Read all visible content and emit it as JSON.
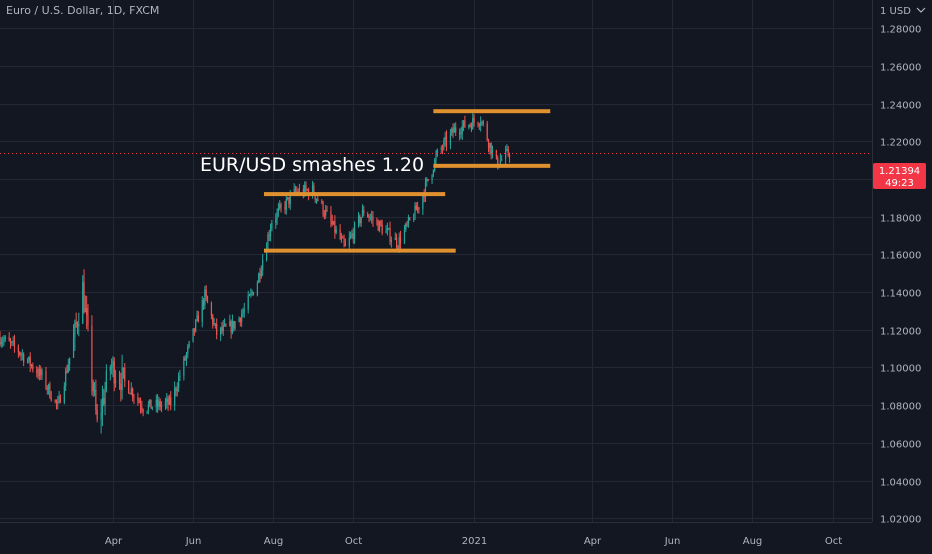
{
  "header": {
    "symbol_title": "Euro / U.S. Dollar, 1D, FXCM",
    "currency_label": "1 USD",
    "currency_icon": "chevron-down-icon"
  },
  "price_tag": {
    "price": "1.21394",
    "countdown": "49:23"
  },
  "annotation_text": "EUR/USD smashes 1.20",
  "colors": {
    "background": "#131722",
    "grid": "#242836",
    "axis_text": "#b2b5be",
    "up": "#26a69a",
    "down": "#ef5350",
    "level_line": "#e0912f",
    "price_tag": "#f23645",
    "annotation": "#ffffff"
  },
  "chart_data": {
    "type": "candlestick",
    "title": "Euro / U.S. Dollar, 1D, FXCM",
    "ylim": [
      1.018,
      1.295
    ],
    "y_ticks": [
      "1.02000",
      "1.04000",
      "1.06000",
      "1.08000",
      "1.10000",
      "1.12000",
      "1.14000",
      "1.16000",
      "1.18000",
      "1.20000",
      "1.22000",
      "1.24000",
      "1.26000",
      "1.28000"
    ],
    "x_ticks": [
      {
        "label": "Apr",
        "date": "2020-04-01"
      },
      {
        "label": "Jun",
        "date": "2020-06-01"
      },
      {
        "label": "Aug",
        "date": "2020-08-01"
      },
      {
        "label": "Oct",
        "date": "2020-10-01"
      },
      {
        "label": "2021",
        "date": "2021-01-01"
      },
      {
        "label": "Apr",
        "date": "2021-04-01"
      },
      {
        "label": "Jun",
        "date": "2021-06-01"
      },
      {
        "label": "Aug",
        "date": "2021-08-01"
      },
      {
        "label": "Oct",
        "date": "2021-10-01"
      }
    ],
    "x_range": [
      "2020-01-06",
      "2021-10-31"
    ],
    "last_price": 1.21394,
    "price_anchors": [
      {
        "date": "2020-01-06",
        "close": 1.116
      },
      {
        "date": "2020-01-20",
        "close": 1.109
      },
      {
        "date": "2020-02-07",
        "close": 1.095
      },
      {
        "date": "2020-02-19",
        "close": 1.079
      },
      {
        "date": "2020-03-02",
        "close": 1.114
      },
      {
        "date": "2020-03-09",
        "close": 1.142
      },
      {
        "date": "2020-03-20",
        "close": 1.069
      },
      {
        "date": "2020-03-30",
        "close": 1.101
      },
      {
        "date": "2020-04-15",
        "close": 1.088
      },
      {
        "date": "2020-04-24",
        "close": 1.079
      },
      {
        "date": "2020-05-07",
        "close": 1.08
      },
      {
        "date": "2020-05-15",
        "close": 1.081
      },
      {
        "date": "2020-05-29",
        "close": 1.111
      },
      {
        "date": "2020-06-10",
        "close": 1.138
      },
      {
        "date": "2020-06-19",
        "close": 1.118
      },
      {
        "date": "2020-07-01",
        "close": 1.122
      },
      {
        "date": "2020-07-10",
        "close": 1.13
      },
      {
        "date": "2020-07-20",
        "close": 1.146
      },
      {
        "date": "2020-07-31",
        "close": 1.178
      },
      {
        "date": "2020-08-18",
        "close": 1.193
      },
      {
        "date": "2020-08-31",
        "close": 1.194
      },
      {
        "date": "2020-09-25",
        "close": 1.163
      },
      {
        "date": "2020-10-09",
        "close": 1.183
      },
      {
        "date": "2020-11-04",
        "close": 1.166
      },
      {
        "date": "2020-11-20",
        "close": 1.186
      },
      {
        "date": "2020-12-04",
        "close": 1.213
      },
      {
        "date": "2020-12-17",
        "close": 1.226
      },
      {
        "date": "2021-01-06",
        "close": 1.232
      },
      {
        "date": "2021-01-18",
        "close": 1.208
      },
      {
        "date": "2021-01-28",
        "close": 1.214
      }
    ],
    "levels": [
      {
        "price": 1.236,
        "start": "2020-12-01",
        "end": "2021-02-28"
      },
      {
        "price": 1.207,
        "start": "2020-12-01",
        "end": "2021-02-28"
      },
      {
        "price": 1.192,
        "start": "2020-07-25",
        "end": "2020-12-10"
      },
      {
        "price": 1.162,
        "start": "2020-07-25",
        "end": "2020-12-18"
      }
    ],
    "annotation": {
      "text": "EUR/USD smashes 1.20"
    }
  }
}
